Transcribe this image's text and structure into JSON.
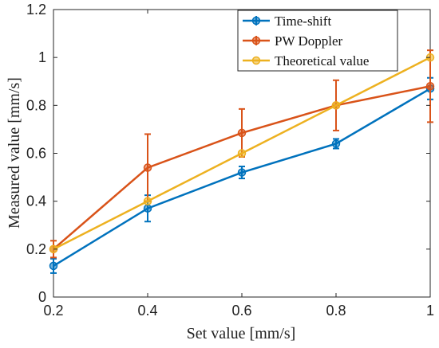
{
  "chart_data": {
    "type": "line",
    "xlabel": "Set value [mm/s]",
    "ylabel": "Measured value [mm/s]",
    "xlim": [
      0.2,
      1
    ],
    "ylim": [
      0,
      1.2
    ],
    "xticks": [
      "0.2",
      "0.4",
      "0.6",
      "0.8",
      "1"
    ],
    "yticks": [
      "0",
      "0.2",
      "0.4",
      "0.6",
      "0.8",
      "1",
      "1.2"
    ],
    "grid": false,
    "legend_position": "top-right",
    "x": [
      0.2,
      0.4,
      0.6,
      0.8,
      1.0
    ],
    "series": [
      {
        "name": "Time-shift",
        "color": "#0072BD",
        "values": [
          0.13,
          0.37,
          0.52,
          0.64,
          0.87
        ],
        "error": [
          0.03,
          0.055,
          0.025,
          0.02,
          0.045
        ]
      },
      {
        "name": "PW Doppler",
        "color": "#D95319",
        "values": [
          0.2,
          0.54,
          0.685,
          0.8,
          0.88
        ],
        "error": [
          0.035,
          0.14,
          0.1,
          0.105,
          0.15
        ]
      },
      {
        "name": "Theoretical value",
        "color": "#EDB120",
        "values": [
          0.2,
          0.4,
          0.6,
          0.8,
          1.0
        ],
        "error": null
      }
    ]
  }
}
